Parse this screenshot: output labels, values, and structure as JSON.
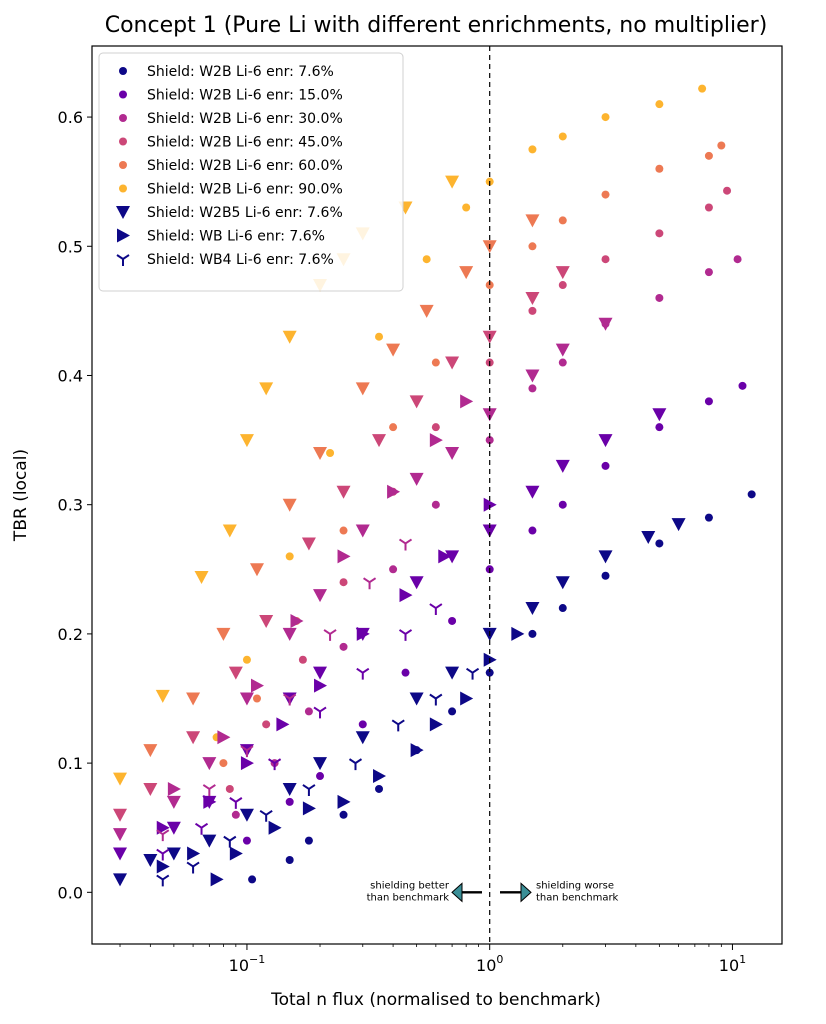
{
  "chart_data": {
    "type": "scatter",
    "title": "Concept 1 (Pure Li with different enrichments, no multiplier)",
    "xlabel": "Total n flux (normalised to benchmark)",
    "ylabel": "TBR (local)",
    "xscale": "log",
    "xlim": [
      0.023,
      16
    ],
    "ylim": [
      -0.04,
      0.655
    ],
    "x_ticks": [
      {
        "value": 0.1,
        "label": "10",
        "exp": "−1"
      },
      {
        "value": 1,
        "label": "10",
        "exp": "0"
      },
      {
        "value": 10,
        "label": "10",
        "exp": "1"
      }
    ],
    "y_ticks": [
      {
        "value": 0.0,
        "label": "0.0"
      },
      {
        "value": 0.1,
        "label": "0.1"
      },
      {
        "value": 0.2,
        "label": "0.2"
      },
      {
        "value": 0.3,
        "label": "0.3"
      },
      {
        "value": 0.4,
        "label": "0.4"
      },
      {
        "value": 0.5,
        "label": "0.5"
      },
      {
        "value": 0.6,
        "label": "0.6"
      }
    ],
    "grid": false,
    "legend_position": "top-left",
    "benchmark_line": {
      "x": 1,
      "style": "dashed"
    },
    "annotations": {
      "left": [
        "shielding better",
        "than benchmark"
      ],
      "right": [
        "shielding worse",
        "than benchmark"
      ]
    },
    "series": [
      {
        "name": "Shield: W2B Li-6 enr: 7.6%",
        "marker": "circle",
        "color": "#0d0887",
        "points": [
          [
            0.105,
            0.01
          ],
          [
            0.15,
            0.025
          ],
          [
            0.18,
            0.04
          ],
          [
            0.25,
            0.06
          ],
          [
            0.35,
            0.08
          ],
          [
            0.5,
            0.11
          ],
          [
            0.7,
            0.14
          ],
          [
            1.0,
            0.17
          ],
          [
            1.5,
            0.2
          ],
          [
            2.0,
            0.22
          ],
          [
            3.0,
            0.245
          ],
          [
            5.0,
            0.27
          ],
          [
            8.0,
            0.29
          ],
          [
            12.0,
            0.308
          ]
        ]
      },
      {
        "name": "Shield: W2B Li-6 enr: 15.0%",
        "marker": "circle",
        "color": "#6a00a8",
        "points": [
          [
            0.1,
            0.04
          ],
          [
            0.15,
            0.07
          ],
          [
            0.2,
            0.09
          ],
          [
            0.3,
            0.13
          ],
          [
            0.45,
            0.17
          ],
          [
            0.7,
            0.21
          ],
          [
            1.0,
            0.25
          ],
          [
            1.5,
            0.28
          ],
          [
            2.0,
            0.3
          ],
          [
            3.0,
            0.33
          ],
          [
            5.0,
            0.36
          ],
          [
            8.0,
            0.38
          ],
          [
            11.0,
            0.392
          ]
        ]
      },
      {
        "name": "Shield: W2B Li-6 enr: 30.0%",
        "marker": "circle",
        "color": "#b12a90",
        "points": [
          [
            0.09,
            0.06
          ],
          [
            0.13,
            0.1
          ],
          [
            0.18,
            0.14
          ],
          [
            0.25,
            0.19
          ],
          [
            0.4,
            0.25
          ],
          [
            0.6,
            0.3
          ],
          [
            1.0,
            0.35
          ],
          [
            1.5,
            0.39
          ],
          [
            2.0,
            0.41
          ],
          [
            3.0,
            0.44
          ],
          [
            5.0,
            0.46
          ],
          [
            8.0,
            0.48
          ],
          [
            10.5,
            0.49
          ]
        ]
      },
      {
        "name": "Shield: W2B Li-6 enr: 45.0%",
        "marker": "circle",
        "color": "#cc4778",
        "points": [
          [
            0.085,
            0.08
          ],
          [
            0.12,
            0.13
          ],
          [
            0.17,
            0.18
          ],
          [
            0.25,
            0.24
          ],
          [
            0.4,
            0.31
          ],
          [
            0.6,
            0.36
          ],
          [
            1.0,
            0.41
          ],
          [
            1.5,
            0.45
          ],
          [
            2.0,
            0.47
          ],
          [
            3.0,
            0.49
          ],
          [
            5.0,
            0.51
          ],
          [
            8.0,
            0.53
          ],
          [
            9.5,
            0.543
          ]
        ]
      },
      {
        "name": "Shield: W2B Li-6 enr: 60.0%",
        "marker": "circle",
        "color": "#ed7953",
        "points": [
          [
            0.08,
            0.1
          ],
          [
            0.11,
            0.15
          ],
          [
            0.16,
            0.21
          ],
          [
            0.25,
            0.28
          ],
          [
            0.4,
            0.36
          ],
          [
            0.6,
            0.41
          ],
          [
            1.0,
            0.47
          ],
          [
            1.5,
            0.5
          ],
          [
            2.0,
            0.52
          ],
          [
            3.0,
            0.54
          ],
          [
            5.0,
            0.56
          ],
          [
            8.0,
            0.57
          ],
          [
            9.0,
            0.578
          ]
        ]
      },
      {
        "name": "Shield: W2B Li-6 enr: 90.0%",
        "marker": "circle",
        "color": "#fdb42f",
        "points": [
          [
            0.075,
            0.12
          ],
          [
            0.1,
            0.18
          ],
          [
            0.15,
            0.26
          ],
          [
            0.22,
            0.34
          ],
          [
            0.35,
            0.43
          ],
          [
            0.55,
            0.49
          ],
          [
            0.8,
            0.53
          ],
          [
            1.0,
            0.55
          ],
          [
            1.5,
            0.575
          ],
          [
            2.0,
            0.585
          ],
          [
            3.0,
            0.6
          ],
          [
            5.0,
            0.61
          ],
          [
            7.5,
            0.622
          ]
        ]
      },
      {
        "name": "Shield: W2B5 Li-6 enr: 7.6%",
        "marker": "triangle-down",
        "color": "#0d0887",
        "points": [
          [
            0.03,
            0.01
          ],
          [
            0.04,
            0.025
          ],
          [
            0.05,
            0.03
          ],
          [
            0.07,
            0.04
          ],
          [
            0.1,
            0.06
          ],
          [
            0.15,
            0.08
          ],
          [
            0.2,
            0.1
          ],
          [
            0.3,
            0.12
          ],
          [
            0.5,
            0.15
          ],
          [
            0.7,
            0.17
          ],
          [
            1.0,
            0.2
          ],
          [
            1.5,
            0.22
          ],
          [
            2.0,
            0.24
          ],
          [
            3.0,
            0.26
          ],
          [
            4.5,
            0.275
          ],
          [
            6.0,
            0.285
          ]
        ]
      },
      {
        "name": "Shield: W2B5 Li-6 enr: 15.0%",
        "marker": "triangle-down",
        "color": "#6a00a8",
        "points": [
          [
            0.03,
            0.03
          ],
          [
            0.05,
            0.05
          ],
          [
            0.07,
            0.07
          ],
          [
            0.1,
            0.11
          ],
          [
            0.15,
            0.15
          ],
          [
            0.2,
            0.17
          ],
          [
            0.3,
            0.2
          ],
          [
            0.5,
            0.24
          ],
          [
            0.7,
            0.26
          ],
          [
            1.0,
            0.28
          ],
          [
            1.5,
            0.31
          ],
          [
            2.0,
            0.33
          ],
          [
            3.0,
            0.35
          ],
          [
            5.0,
            0.37
          ]
        ]
      },
      {
        "name": "Shield: W2B5 Li-6 enr: 30.0%",
        "marker": "triangle-down",
        "color": "#b12a90",
        "points": [
          [
            0.03,
            0.045
          ],
          [
            0.05,
            0.07
          ],
          [
            0.07,
            0.1
          ],
          [
            0.1,
            0.15
          ],
          [
            0.15,
            0.2
          ],
          [
            0.2,
            0.23
          ],
          [
            0.3,
            0.28
          ],
          [
            0.5,
            0.32
          ],
          [
            0.7,
            0.34
          ],
          [
            1.0,
            0.37
          ],
          [
            1.5,
            0.4
          ],
          [
            2.0,
            0.42
          ],
          [
            3.0,
            0.44
          ]
        ]
      },
      {
        "name": "Shield: W2B5 Li-6 enr: 45.0%",
        "marker": "triangle-down",
        "color": "#cc4778",
        "points": [
          [
            0.03,
            0.06
          ],
          [
            0.04,
            0.08
          ],
          [
            0.06,
            0.12
          ],
          [
            0.09,
            0.17
          ],
          [
            0.12,
            0.21
          ],
          [
            0.18,
            0.27
          ],
          [
            0.25,
            0.31
          ],
          [
            0.35,
            0.35
          ],
          [
            0.5,
            0.38
          ],
          [
            0.7,
            0.41
          ],
          [
            1.0,
            0.43
          ],
          [
            1.5,
            0.46
          ],
          [
            2.0,
            0.48
          ]
        ]
      },
      {
        "name": "Shield: W2B5 Li-6 enr: 60.0%",
        "marker": "triangle-down",
        "color": "#ed7953",
        "points": [
          [
            0.04,
            0.11
          ],
          [
            0.06,
            0.15
          ],
          [
            0.08,
            0.2
          ],
          [
            0.11,
            0.25
          ],
          [
            0.15,
            0.3
          ],
          [
            0.2,
            0.34
          ],
          [
            0.3,
            0.39
          ],
          [
            0.4,
            0.42
          ],
          [
            0.55,
            0.45
          ],
          [
            0.8,
            0.48
          ],
          [
            1.0,
            0.5
          ],
          [
            1.5,
            0.52
          ]
        ]
      },
      {
        "name": "Shield: W2B5 Li-6 enr: 90.0%",
        "marker": "triangle-down",
        "color": "#fdb42f",
        "points": [
          [
            0.03,
            0.088
          ],
          [
            0.045,
            0.152
          ],
          [
            0.065,
            0.244
          ],
          [
            0.085,
            0.28
          ],
          [
            0.1,
            0.35
          ],
          [
            0.12,
            0.39
          ],
          [
            0.15,
            0.43
          ],
          [
            0.2,
            0.47
          ],
          [
            0.25,
            0.49
          ],
          [
            0.3,
            0.51
          ],
          [
            0.45,
            0.53
          ],
          [
            0.7,
            0.55
          ]
        ]
      },
      {
        "name": "Shield: WB Li-6 enr: 7.6%",
        "marker": "triangle-right",
        "color": "#0d0887",
        "points": [
          [
            0.045,
            0.02
          ],
          [
            0.06,
            0.03
          ],
          [
            0.075,
            0.01
          ],
          [
            0.09,
            0.03
          ],
          [
            0.13,
            0.05
          ],
          [
            0.18,
            0.065
          ],
          [
            0.25,
            0.07
          ],
          [
            0.35,
            0.09
          ],
          [
            0.5,
            0.11
          ],
          [
            0.6,
            0.13
          ],
          [
            0.8,
            0.15
          ],
          [
            1.0,
            0.18
          ],
          [
            1.3,
            0.2
          ]
        ]
      },
      {
        "name": "Shield: WB Li-6 enr: 15.0%",
        "marker": "triangle-right",
        "color": "#6a00a8",
        "points": [
          [
            0.045,
            0.05
          ],
          [
            0.07,
            0.07
          ],
          [
            0.1,
            0.1
          ],
          [
            0.14,
            0.13
          ],
          [
            0.2,
            0.16
          ],
          [
            0.3,
            0.2
          ],
          [
            0.45,
            0.23
          ],
          [
            0.65,
            0.26
          ],
          [
            1.0,
            0.3
          ]
        ]
      },
      {
        "name": "Shield: WB Li-6 enr: 30.0%",
        "marker": "triangle-right",
        "color": "#b12a90",
        "points": [
          [
            0.05,
            0.08
          ],
          [
            0.08,
            0.12
          ],
          [
            0.11,
            0.16
          ],
          [
            0.16,
            0.21
          ],
          [
            0.25,
            0.26
          ],
          [
            0.4,
            0.31
          ],
          [
            0.6,
            0.35
          ],
          [
            0.8,
            0.38
          ]
        ]
      },
      {
        "name": "Shield: WB4 Li-6 enr: 7.6%",
        "marker": "tri-down",
        "color": "#0d0887",
        "points": [
          [
            0.045,
            0.01
          ],
          [
            0.06,
            0.02
          ],
          [
            0.085,
            0.04
          ],
          [
            0.12,
            0.06
          ],
          [
            0.18,
            0.08
          ],
          [
            0.28,
            0.1
          ],
          [
            0.42,
            0.13
          ],
          [
            0.6,
            0.15
          ],
          [
            0.85,
            0.17
          ]
        ]
      },
      {
        "name": "Shield: WB4 Li-6 enr: 15.0%",
        "marker": "tri-down",
        "color": "#6a00a8",
        "points": [
          [
            0.045,
            0.03
          ],
          [
            0.065,
            0.05
          ],
          [
            0.09,
            0.07
          ],
          [
            0.13,
            0.1
          ],
          [
            0.2,
            0.14
          ],
          [
            0.3,
            0.17
          ],
          [
            0.45,
            0.2
          ],
          [
            0.6,
            0.22
          ]
        ]
      },
      {
        "name": "Shield: WB4 Li-6 enr: 30.0%",
        "marker": "tri-down",
        "color": "#b12a90",
        "points": [
          [
            0.045,
            0.045
          ],
          [
            0.07,
            0.08
          ],
          [
            0.1,
            0.11
          ],
          [
            0.15,
            0.15
          ],
          [
            0.22,
            0.2
          ],
          [
            0.32,
            0.24
          ],
          [
            0.45,
            0.27
          ]
        ]
      }
    ],
    "legend": [
      {
        "label": "Shield: W2B Li-6 enr: 7.6%",
        "marker": "circle",
        "color": "#0d0887"
      },
      {
        "label": "Shield: W2B Li-6 enr: 15.0%",
        "marker": "circle",
        "color": "#6a00a8"
      },
      {
        "label": "Shield: W2B Li-6 enr: 30.0%",
        "marker": "circle",
        "color": "#b12a90"
      },
      {
        "label": "Shield: W2B Li-6 enr: 45.0%",
        "marker": "circle",
        "color": "#cc4778"
      },
      {
        "label": "Shield: W2B Li-6 enr: 60.0%",
        "marker": "circle",
        "color": "#ed7953"
      },
      {
        "label": "Shield: W2B Li-6 enr: 90.0%",
        "marker": "circle",
        "color": "#fdb42f"
      },
      {
        "label": "Shield: W2B5 Li-6 enr: 7.6%",
        "marker": "triangle-down",
        "color": "#0d0887"
      },
      {
        "label": "Shield: WB Li-6 enr: 7.6%",
        "marker": "triangle-right",
        "color": "#0d0887"
      },
      {
        "label": "Shield: WB4 Li-6 enr: 7.6%",
        "marker": "tri-down",
        "color": "#0d0887"
      }
    ]
  }
}
